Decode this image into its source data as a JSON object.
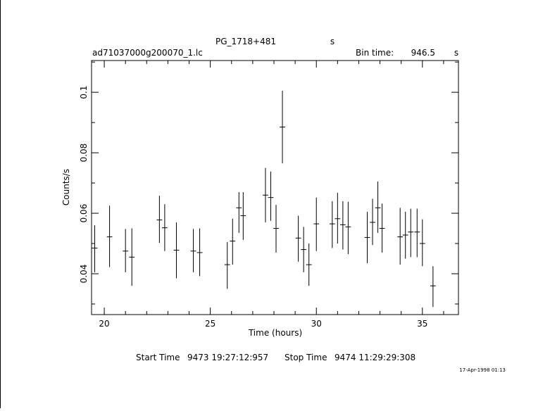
{
  "chart_data": {
    "type": "scatter",
    "title": "PG_1718+481",
    "title_suffix": "s",
    "filename": "ad71037000g200070_1.lc",
    "bin_time_label": "Bin time:",
    "bin_time_value": "946.5",
    "bin_time_unit": "s",
    "xlabel": "Time (hours)",
    "ylabel": "Counts/s",
    "xlim": [
      19.4,
      36.7
    ],
    "ylim": [
      0.0265,
      0.1105
    ],
    "xticks": [
      20,
      25,
      30,
      35
    ],
    "yticks": [
      0.04,
      0.06,
      0.08,
      0.1
    ],
    "yticks_labels": [
      "0.04",
      "0.06",
      "0.08",
      "0.1"
    ],
    "grid": false,
    "points": [
      {
        "x": 19.55,
        "y": 0.0485,
        "xerr": 0.13,
        "ylo": 0.0405,
        "yhi": 0.056
      },
      {
        "x": 20.25,
        "y": 0.0522,
        "xerr": 0.13,
        "ylo": 0.0422,
        "yhi": 0.0625
      },
      {
        "x": 21.0,
        "y": 0.0475,
        "xerr": 0.13,
        "ylo": 0.0405,
        "yhi": 0.0548
      },
      {
        "x": 21.3,
        "y": 0.0455,
        "xerr": 0.13,
        "ylo": 0.036,
        "yhi": 0.055
      },
      {
        "x": 22.6,
        "y": 0.0578,
        "xerr": 0.13,
        "ylo": 0.0502,
        "yhi": 0.0658
      },
      {
        "x": 22.85,
        "y": 0.0552,
        "xerr": 0.13,
        "ylo": 0.0475,
        "yhi": 0.063
      },
      {
        "x": 23.4,
        "y": 0.0478,
        "xerr": 0.13,
        "ylo": 0.0385,
        "yhi": 0.057
      },
      {
        "x": 24.2,
        "y": 0.0475,
        "xerr": 0.13,
        "ylo": 0.0405,
        "yhi": 0.0548
      },
      {
        "x": 24.5,
        "y": 0.047,
        "xerr": 0.13,
        "ylo": 0.0392,
        "yhi": 0.055
      },
      {
        "x": 25.8,
        "y": 0.043,
        "xerr": 0.13,
        "ylo": 0.035,
        "yhi": 0.0505
      },
      {
        "x": 26.05,
        "y": 0.0508,
        "xerr": 0.13,
        "ylo": 0.043,
        "yhi": 0.0582
      },
      {
        "x": 26.35,
        "y": 0.0618,
        "xerr": 0.13,
        "ylo": 0.0535,
        "yhi": 0.067
      },
      {
        "x": 26.55,
        "y": 0.0592,
        "xerr": 0.13,
        "ylo": 0.0512,
        "yhi": 0.067
      },
      {
        "x": 27.6,
        "y": 0.066,
        "xerr": 0.13,
        "ylo": 0.057,
        "yhi": 0.075
      },
      {
        "x": 27.85,
        "y": 0.0652,
        "xerr": 0.13,
        "ylo": 0.0575,
        "yhi": 0.0738
      },
      {
        "x": 28.1,
        "y": 0.055,
        "xerr": 0.13,
        "ylo": 0.047,
        "yhi": 0.0628
      },
      {
        "x": 28.4,
        "y": 0.0885,
        "xerr": 0.13,
        "ylo": 0.0765,
        "yhi": 0.1005
      },
      {
        "x": 29.15,
        "y": 0.0518,
        "xerr": 0.13,
        "ylo": 0.044,
        "yhi": 0.0592
      },
      {
        "x": 29.4,
        "y": 0.048,
        "xerr": 0.13,
        "ylo": 0.0405,
        "yhi": 0.0555
      },
      {
        "x": 29.65,
        "y": 0.043,
        "xerr": 0.13,
        "ylo": 0.036,
        "yhi": 0.05
      },
      {
        "x": 30.0,
        "y": 0.0565,
        "xerr": 0.13,
        "ylo": 0.0475,
        "yhi": 0.0652
      },
      {
        "x": 30.75,
        "y": 0.0565,
        "xerr": 0.13,
        "ylo": 0.0485,
        "yhi": 0.064
      },
      {
        "x": 31.0,
        "y": 0.0582,
        "xerr": 0.13,
        "ylo": 0.05,
        "yhi": 0.0668
      },
      {
        "x": 31.25,
        "y": 0.0562,
        "xerr": 0.13,
        "ylo": 0.048,
        "yhi": 0.064
      },
      {
        "x": 31.5,
        "y": 0.0555,
        "xerr": 0.13,
        "ylo": 0.0465,
        "yhi": 0.0638
      },
      {
        "x": 32.4,
        "y": 0.052,
        "xerr": 0.13,
        "ylo": 0.0435,
        "yhi": 0.0605
      },
      {
        "x": 32.65,
        "y": 0.057,
        "xerr": 0.13,
        "ylo": 0.0495,
        "yhi": 0.0648
      },
      {
        "x": 32.9,
        "y": 0.0618,
        "xerr": 0.13,
        "ylo": 0.0535,
        "yhi": 0.0705
      },
      {
        "x": 33.1,
        "y": 0.055,
        "xerr": 0.13,
        "ylo": 0.047,
        "yhi": 0.0632
      },
      {
        "x": 33.95,
        "y": 0.0522,
        "xerr": 0.13,
        "ylo": 0.043,
        "yhi": 0.0618
      },
      {
        "x": 34.2,
        "y": 0.0528,
        "xerr": 0.13,
        "ylo": 0.045,
        "yhi": 0.0605
      },
      {
        "x": 34.45,
        "y": 0.0538,
        "xerr": 0.13,
        "ylo": 0.0455,
        "yhi": 0.0615
      },
      {
        "x": 34.75,
        "y": 0.0538,
        "xerr": 0.13,
        "ylo": 0.0455,
        "yhi": 0.0615
      },
      {
        "x": 35.0,
        "y": 0.05,
        "xerr": 0.13,
        "ylo": 0.0425,
        "yhi": 0.058
      },
      {
        "x": 35.5,
        "y": 0.036,
        "xerr": 0.13,
        "ylo": 0.029,
        "yhi": 0.0425
      }
    ]
  },
  "footer": {
    "start_label": "Start Time",
    "start_value": "9473 19:27:12:957",
    "stop_label": "Stop Time",
    "stop_value": "9474 11:29:29:308",
    "date_stamp": "17-Apr-1998 01:13"
  }
}
